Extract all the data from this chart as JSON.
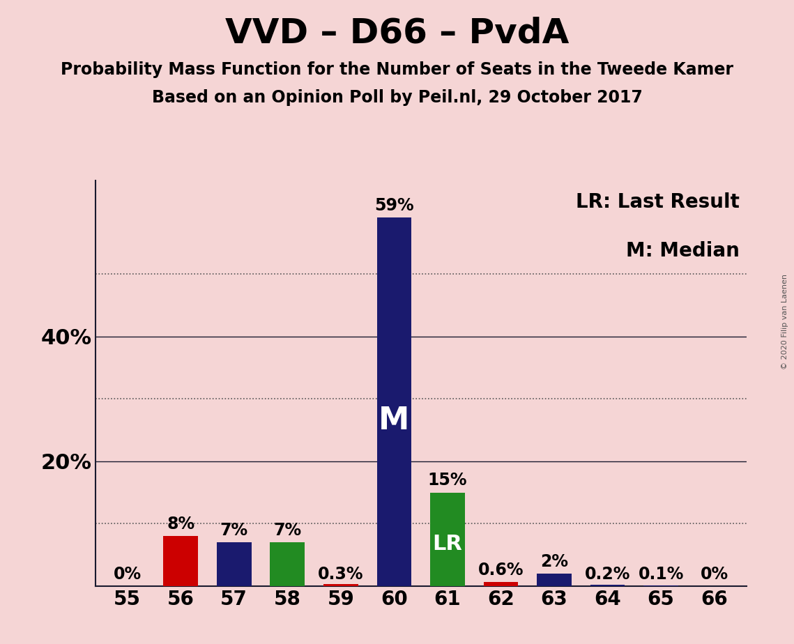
{
  "title": "VVD – D66 – PvdA",
  "subtitle1": "Probability Mass Function for the Number of Seats in the Tweede Kamer",
  "subtitle2": "Based on an Opinion Poll by Peil.nl, 29 October 2017",
  "copyright": "© 2020 Filip van Laenen",
  "legend_lr": "LR: Last Result",
  "legend_m": "M: Median",
  "categories": [
    55,
    56,
    57,
    58,
    59,
    60,
    61,
    62,
    63,
    64,
    65,
    66
  ],
  "values": [
    0.0,
    8.0,
    7.0,
    7.0,
    0.3,
    59.0,
    15.0,
    0.6,
    2.0,
    0.2,
    0.1,
    0.0
  ],
  "bar_colors": [
    "#1a1a6e",
    "#cc0000",
    "#1a1a6e",
    "#228b22",
    "#cc0000",
    "#1a1a6e",
    "#228b22",
    "#cc0000",
    "#1a1a6e",
    "#1a1a6e",
    "#1a1a6e",
    "#1a1a6e"
  ],
  "label_texts": [
    "0%",
    "8%",
    "7%",
    "7%",
    "0.3%",
    "59%",
    "15%",
    "0.6%",
    "2%",
    "0.2%",
    "0.1%",
    "0%"
  ],
  "median_bar": 60,
  "last_result_bar": 61,
  "median_label": "M",
  "last_result_label": "LR",
  "ylim": [
    0,
    65
  ],
  "background_color": "#f5d5d5",
  "bar_width": 0.65,
  "title_fontsize": 36,
  "subtitle_fontsize": 17,
  "tick_fontsize": 20,
  "label_fontsize": 17,
  "inner_label_fontsize_m": 32,
  "inner_label_fontsize_lr": 22,
  "legend_fontsize": 20,
  "ytick_fontsize": 22,
  "dotted_lines": [
    10,
    30,
    50
  ],
  "solid_lines": [
    20,
    40
  ],
  "ytick_positions": [
    20,
    40
  ],
  "ytick_labels": [
    "20%",
    "40%"
  ]
}
